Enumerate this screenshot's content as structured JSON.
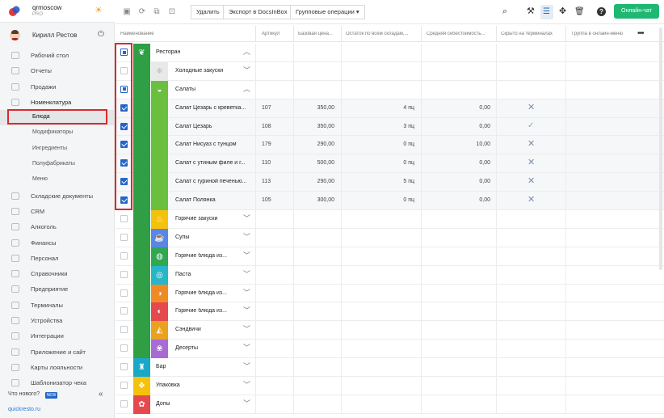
{
  "brand": {
    "name": "qrmoscow",
    "plan": "PRO"
  },
  "user": {
    "name": "Кирилл Рестов"
  },
  "nav": [
    {
      "label": "Рабочий стол",
      "type": "main"
    },
    {
      "label": "Отчеты",
      "type": "main"
    },
    {
      "label": "Продажи",
      "type": "main"
    },
    {
      "label": "Номенклатура",
      "type": "main",
      "bold": true
    },
    {
      "label": "Блюда",
      "type": "sub",
      "active": true
    },
    {
      "label": "Модификаторы",
      "type": "sub"
    },
    {
      "label": "Ингредиенты",
      "type": "sub"
    },
    {
      "label": "Полуфабрикаты",
      "type": "sub"
    },
    {
      "label": "Меню",
      "type": "sub"
    },
    {
      "label": "Складские документы",
      "type": "main"
    },
    {
      "label": "CRM",
      "type": "main"
    },
    {
      "label": "Алкоголь",
      "type": "main"
    },
    {
      "label": "Финансы",
      "type": "main"
    },
    {
      "label": "Персонал",
      "type": "main"
    },
    {
      "label": "Справочники",
      "type": "main"
    },
    {
      "label": "Предприятие",
      "type": "main"
    },
    {
      "label": "Терминалы",
      "type": "main"
    },
    {
      "label": "Устройства",
      "type": "main"
    },
    {
      "label": "Интеграции",
      "type": "main"
    },
    {
      "label": "Приложение и сайт",
      "type": "main"
    },
    {
      "label": "Карты лояльности",
      "type": "main"
    },
    {
      "label": "Шаблонизатор чека",
      "type": "main"
    }
  ],
  "sidebar_footer": {
    "whats_new": "Что нового?",
    "new_badge": "NEW",
    "site": "quickresto.ru"
  },
  "toolbar": {
    "delete": "Удалить",
    "export": "Экспорт в DocsInBox",
    "group_ops": "Групповые операции",
    "chat": "Онлайн-чат"
  },
  "columns": {
    "name": "Наименование",
    "article": "Артикул",
    "base_price": "Базовая цена...",
    "stock": "Остаток по всем складам,...",
    "avg_cost": "Средняя себестоимость...",
    "hidden": "Скрыто на терминалах",
    "online_group": "Группа в онлайн-меню"
  },
  "rows": [
    {
      "name": "Ресторан",
      "level": 0,
      "check": "partial",
      "expanded": true,
      "color": "#2f9e44",
      "icon": "cherries"
    },
    {
      "name": "Холодные закуски",
      "level": 1,
      "check": "none",
      "expanded": false,
      "color": "#e9e9e9",
      "icon": "cold-snack"
    },
    {
      "name": "Салаты",
      "level": 1,
      "check": "partial",
      "expanded": true,
      "color": "#6abf3f",
      "icon": "salad-bowl"
    },
    {
      "name": "Салат Цезарь с креветка...",
      "level": 2,
      "check": "checked",
      "article": "107",
      "price": "350,00",
      "stock": "4 пц",
      "cost": "0,00",
      "hidden": "x"
    },
    {
      "name": "Салат Цезарь",
      "level": 2,
      "check": "checked",
      "article": "108",
      "price": "350,00",
      "stock": "3 пц",
      "cost": "0,00",
      "hidden": "ok"
    },
    {
      "name": "Салат Нисуаз с тунцом",
      "level": 2,
      "check": "checked",
      "article": "179",
      "price": "290,00",
      "stock": "0 пц",
      "cost": "10,00",
      "hidden": "x"
    },
    {
      "name": "Салат с утиным филе и г...",
      "level": 2,
      "check": "checked",
      "article": "110",
      "price": "500,00",
      "stock": "0 пц",
      "cost": "0,00",
      "hidden": "x"
    },
    {
      "name": "Салат с гуриной печенью...",
      "level": 2,
      "check": "checked",
      "article": "113",
      "price": "290,00",
      "stock": "5 пц",
      "cost": "0,00",
      "hidden": "x"
    },
    {
      "name": "Салат Полянка",
      "level": 2,
      "check": "checked",
      "article": "105",
      "price": "300,00",
      "stock": "0 пц",
      "cost": "0,00",
      "hidden": "x"
    },
    {
      "name": "Горячие закуски",
      "level": 1,
      "check": "none",
      "expanded": false,
      "color": "#f4c20d",
      "icon": "hot-snack"
    },
    {
      "name": "Супы",
      "level": 1,
      "check": "none",
      "expanded": false,
      "color": "#5b86e5",
      "icon": "soup"
    },
    {
      "name": "Горячие блюда из...",
      "level": 1,
      "check": "none",
      "expanded": false,
      "color": "#2fa84f",
      "icon": "hot-dish"
    },
    {
      "name": "Паста",
      "level": 1,
      "check": "none",
      "expanded": false,
      "color": "#26b6c9",
      "icon": "pasta"
    },
    {
      "name": "Горячие блюда из...",
      "level": 1,
      "check": "none",
      "expanded": false,
      "color": "#f08a24",
      "icon": "hot-dish-fish"
    },
    {
      "name": "Горячие блюда из...",
      "level": 1,
      "check": "none",
      "expanded": false,
      "color": "#e5484d",
      "icon": "hot-dish-meat"
    },
    {
      "name": "Сэндвичи",
      "level": 1,
      "check": "none",
      "expanded": false,
      "color": "#e9a21d",
      "icon": "sandwich"
    },
    {
      "name": "Десерты",
      "level": 1,
      "check": "none",
      "expanded": false,
      "color": "#a86bd6",
      "icon": "cupcake"
    },
    {
      "name": "Бар",
      "level": 0,
      "check": "none",
      "expanded": false,
      "color": "#1aa8c7",
      "icon": "drink"
    },
    {
      "name": "Упаковка",
      "level": 0,
      "check": "none",
      "expanded": false,
      "color": "#f4c20d",
      "icon": "box"
    },
    {
      "name": "Допы",
      "level": 0,
      "check": "none",
      "expanded": false,
      "color": "#e5484d",
      "icon": "pepper"
    }
  ]
}
